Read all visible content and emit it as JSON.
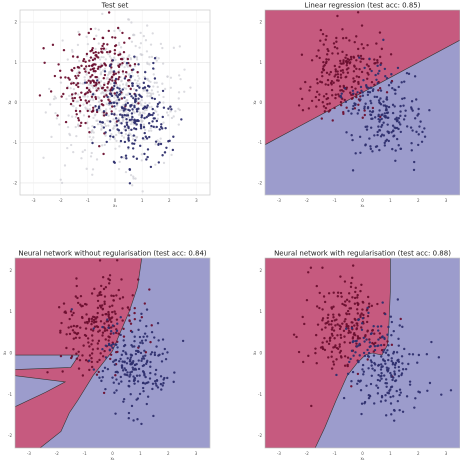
{
  "chart_data": [
    {
      "type": "scatter",
      "title": "Test set",
      "xlabel": "x₁",
      "ylabel": "x₂",
      "xlim": [
        -3.5,
        3.5
      ],
      "ylim": [
        -2.3,
        2.3
      ],
      "xticks": [
        "-3",
        "-2",
        "-1",
        "0",
        "1",
        "2",
        "3"
      ],
      "yticks": [
        "2",
        "1",
        "0",
        "-1",
        "-2"
      ],
      "grid": true,
      "background": "none",
      "series": [
        {
          "class": 0,
          "color": "#6b0f2f",
          "count": 240,
          "center": [
            -0.6,
            0.65
          ]
        },
        {
          "class": 1,
          "color": "#2e2f6e",
          "count": 240,
          "center": [
            0.75,
            -0.3
          ]
        },
        {
          "class": "unlabelled",
          "color": "#cfcfd6",
          "count": 600,
          "center": [
            0.1,
            0.15
          ]
        }
      ]
    },
    {
      "type": "scatter",
      "title": "Linear regression (test acc: 0.85)",
      "xlabel": "x₁",
      "ylabel": "x₂",
      "xlim": [
        -3.5,
        3.5
      ],
      "ylim": [
        -2.3,
        2.3
      ],
      "xticks": [
        "-3",
        "-2",
        "-1",
        "0",
        "1",
        "2",
        "3"
      ],
      "yticks": [
        "2",
        "1",
        "0",
        "-1",
        "-2"
      ],
      "grid": false,
      "background": "decision-regions",
      "boundary": "linear",
      "test_accuracy": 0.85,
      "region_colors": [
        "#c65a7f",
        "#9c9ccc"
      ],
      "series": [
        {
          "class": 0,
          "color": "#6b0f2f",
          "count": 220,
          "center": [
            -0.6,
            0.65
          ]
        },
        {
          "class": 1,
          "color": "#2e2f6e",
          "count": 220,
          "center": [
            0.75,
            -0.3
          ]
        }
      ]
    },
    {
      "type": "scatter",
      "title": "Neural network without regularisation (test acc: 0.84)",
      "xlabel": "x₁",
      "ylabel": "x₂",
      "xlim": [
        -3.5,
        3.5
      ],
      "ylim": [
        -2.3,
        2.3
      ],
      "xticks": [
        "-3",
        "-2",
        "-1",
        "0",
        "1",
        "2",
        "3"
      ],
      "yticks": [
        "2",
        "1",
        "0",
        "-1",
        "-2"
      ],
      "grid": false,
      "background": "decision-regions",
      "boundary": "nonlinear-overfit",
      "test_accuracy": 0.84,
      "region_colors": [
        "#c65a7f",
        "#9c9ccc"
      ],
      "series": [
        {
          "class": 0,
          "color": "#6b0f2f",
          "count": 220,
          "center": [
            -0.6,
            0.65
          ]
        },
        {
          "class": 1,
          "color": "#2e2f6e",
          "count": 220,
          "center": [
            0.75,
            -0.3
          ]
        }
      ]
    },
    {
      "type": "scatter",
      "title": "Neural network with regularisation (test acc: 0.88)",
      "xlabel": "x₁",
      "ylabel": "x₂",
      "xlim": [
        -3.5,
        3.5
      ],
      "ylim": [
        -2.3,
        2.3
      ],
      "xticks": [
        "-3",
        "-2",
        "-1",
        "0",
        "1",
        "2",
        "3"
      ],
      "yticks": [
        "2",
        "1",
        "0",
        "-1",
        "-2"
      ],
      "grid": false,
      "background": "decision-regions",
      "boundary": "nonlinear-smooth",
      "test_accuracy": 0.88,
      "region_colors": [
        "#c65a7f",
        "#9c9ccc"
      ],
      "series": [
        {
          "class": 0,
          "color": "#6b0f2f",
          "count": 220,
          "center": [
            -0.6,
            0.65
          ]
        },
        {
          "class": 1,
          "color": "#2e2f6e",
          "count": 220,
          "center": [
            0.75,
            -0.3
          ]
        }
      ]
    }
  ]
}
